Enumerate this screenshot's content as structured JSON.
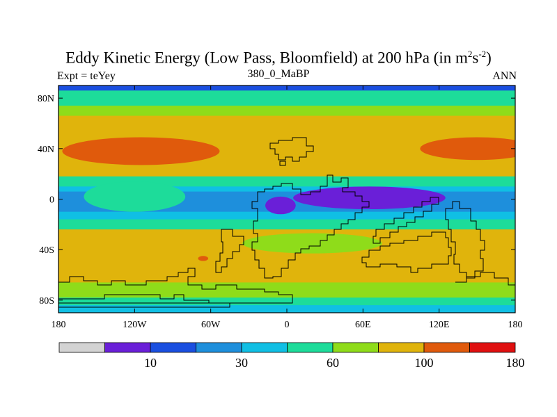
{
  "title": {
    "main": "Eddy Kinetic Energy (Low Pass, Bloomfield) at 200 hPa (in m",
    "sup1": "2",
    "mid": "s",
    "sup2": "-2",
    "end": ")"
  },
  "subtitle_left": "Expt = teYey",
  "subtitle_center": "380_0_MaBP",
  "subtitle_right": "ANN",
  "chart_data": {
    "type": "heatmap",
    "title": "Eddy Kinetic Energy (Low Pass, Bloomfield) at 200 hPa (in m2s-2)",
    "x_ticks": [
      "180",
      "120W",
      "60W",
      "0",
      "60E",
      "120E",
      "180"
    ],
    "x_tick_values": [
      -180,
      -120,
      -60,
      0,
      60,
      120,
      180
    ],
    "y_ticks": [
      "80N",
      "40N",
      "0",
      "40S",
      "80S"
    ],
    "y_tick_values": [
      80,
      40,
      0,
      -40,
      -80
    ],
    "xlim": [
      -180,
      180
    ],
    "ylim": [
      -90,
      90
    ],
    "colorbar": {
      "colors": [
        "#d3d3d3",
        "#6a1fd8",
        "#1a4fe0",
        "#1e8fdc",
        "#10bfe4",
        "#1ddc9a",
        "#8fdc1a",
        "#e0b40c",
        "#e05a0c",
        "#e01010"
      ],
      "labels": [
        "10",
        "30",
        "60",
        "100",
        "180"
      ],
      "label_after_box": [
        1,
        3,
        5,
        7,
        9
      ]
    },
    "bands": [
      {
        "lat_top": 90,
        "lat_bottom": 86,
        "level": 2
      },
      {
        "lat_top": 86,
        "lat_bottom": 74,
        "level": 5
      },
      {
        "lat_top": 74,
        "lat_bottom": 66,
        "level": 6
      },
      {
        "lat_top": 66,
        "lat_bottom": 56,
        "level": 7
      },
      {
        "lat_top": 56,
        "lat_bottom": 18,
        "level": 7
      },
      {
        "lat_top": 18,
        "lat_bottom": 10,
        "level": 5
      },
      {
        "lat_top": 10,
        "lat_bottom": 6,
        "level": 4
      },
      {
        "lat_top": 6,
        "lat_bottom": -10,
        "level": 3
      },
      {
        "lat_top": -10,
        "lat_bottom": -16,
        "level": 4
      },
      {
        "lat_top": -16,
        "lat_bottom": -24,
        "level": 5
      },
      {
        "lat_top": -24,
        "lat_bottom": -66,
        "level": 7
      },
      {
        "lat_top": -66,
        "lat_bottom": -78,
        "level": 6
      },
      {
        "lat_top": -78,
        "lat_bottom": -84,
        "level": 5
      },
      {
        "lat_top": -84,
        "lat_bottom": -90,
        "level": 4
      }
    ],
    "blobs": [
      {
        "name": "north-atlantic-jet-max",
        "lon": -115,
        "lat": 38,
        "rlon": 62,
        "rlat": 11,
        "level": 8
      },
      {
        "name": "pacific-jet-max",
        "lon": 150,
        "lat": 40,
        "rlon": 45,
        "rlat": 9,
        "level": 8
      },
      {
        "name": "tropical-minimum-east",
        "lon": 65,
        "lat": 1,
        "rlon": 60,
        "rlat": 9,
        "level": 1
      },
      {
        "name": "tropical-minimum-west",
        "lon": -5,
        "lat": -5,
        "rlon": 12,
        "rlat": 7,
        "level": 1
      },
      {
        "name": "small-hot-spot",
        "lon": -66,
        "lat": -47,
        "rlon": 4,
        "rlat": 2,
        "level": 8
      },
      {
        "name": "equatorial-green-tongue",
        "lon": -120,
        "lat": 2,
        "rlon": 40,
        "rlat": 12,
        "level": 5
      },
      {
        "name": "southern-yellow-tongue",
        "lon": 20,
        "lat": -35,
        "rlon": 55,
        "rlat": 8,
        "level": 6
      }
    ]
  }
}
